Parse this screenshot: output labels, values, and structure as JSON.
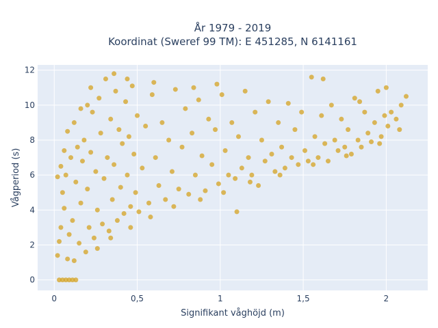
{
  "chart_data": {
    "type": "scatter",
    "title_line1": "År 1979 - 2019",
    "title_line2": "Koordinat (Sweref 99 TM): E 451285, N 6141161",
    "xlabel": "Signifikant våghöjd (m)",
    "ylabel": "Vågperiod (s)",
    "xlim": [
      -0.1,
      2.25
    ],
    "ylim": [
      -0.6,
      12.3
    ],
    "x_ticks": [
      0,
      0.5,
      1,
      1.5,
      2
    ],
    "x_tick_labels": [
      "0",
      "0,5",
      "1",
      "1,5",
      "2"
    ],
    "y_ticks": [
      0,
      2,
      4,
      6,
      8,
      10,
      12
    ],
    "y_tick_labels": [
      "0",
      "2",
      "4",
      "6",
      "8",
      "10",
      "12"
    ],
    "grid": true,
    "marker_color": "#d4a321",
    "plot_background": "#e5ecf6",
    "series": [
      {
        "points": [
          [
            0.02,
            1.4
          ],
          [
            0.03,
            2.2
          ],
          [
            0.04,
            3.0
          ],
          [
            0.05,
            5.0
          ],
          [
            0.06,
            4.1
          ],
          [
            0.07,
            6.0
          ],
          [
            0.08,
            1.2
          ],
          [
            0.09,
            2.6
          ],
          [
            0.1,
            7.0
          ],
          [
            0.11,
            3.4
          ],
          [
            0.12,
            1.1
          ],
          [
            0.13,
            5.6
          ],
          [
            0.14,
            7.6
          ],
          [
            0.15,
            2.1
          ],
          [
            0.16,
            4.4
          ],
          [
            0.17,
            6.8
          ],
          [
            0.18,
            8.0
          ],
          [
            0.19,
            1.6
          ],
          [
            0.2,
            5.2
          ],
          [
            0.21,
            3.0
          ],
          [
            0.22,
            7.3
          ],
          [
            0.23,
            9.6
          ],
          [
            0.24,
            2.4
          ],
          [
            0.25,
            6.2
          ],
          [
            0.26,
            4.0
          ],
          [
            0.27,
            10.4
          ],
          [
            0.28,
            8.4
          ],
          [
            0.29,
            3.2
          ],
          [
            0.3,
            5.8
          ],
          [
            0.31,
            11.5
          ],
          [
            0.32,
            7.0
          ],
          [
            0.33,
            2.8
          ],
          [
            0.34,
            9.2
          ],
          [
            0.35,
            4.6
          ],
          [
            0.36,
            6.6
          ],
          [
            0.37,
            10.8
          ],
          [
            0.38,
            3.4
          ],
          [
            0.39,
            8.6
          ],
          [
            0.4,
            5.3
          ],
          [
            0.41,
            7.8
          ],
          [
            0.42,
            3.8
          ],
          [
            0.43,
            10.2
          ],
          [
            0.44,
            6.0
          ],
          [
            0.45,
            8.2
          ],
          [
            0.46,
            4.2
          ],
          [
            0.47,
            11.1
          ],
          [
            0.48,
            7.2
          ],
          [
            0.49,
            5.0
          ],
          [
            0.5,
            9.4
          ],
          [
            0.51,
            3.9
          ],
          [
            0.53,
            6.4
          ],
          [
            0.55,
            8.8
          ],
          [
            0.57,
            4.4
          ],
          [
            0.59,
            10.6
          ],
          [
            0.61,
            7.0
          ],
          [
            0.63,
            5.4
          ],
          [
            0.65,
            9.0
          ],
          [
            0.67,
            4.6
          ],
          [
            0.69,
            8.0
          ],
          [
            0.71,
            6.2
          ],
          [
            0.73,
            10.9
          ],
          [
            0.75,
            5.2
          ],
          [
            0.77,
            7.6
          ],
          [
            0.79,
            9.8
          ],
          [
            0.81,
            4.9
          ],
          [
            0.83,
            8.4
          ],
          [
            0.85,
            6.0
          ],
          [
            0.87,
            10.3
          ],
          [
            0.89,
            7.1
          ],
          [
            0.91,
            5.1
          ],
          [
            0.93,
            9.2
          ],
          [
            0.95,
            6.6
          ],
          [
            0.97,
            8.6
          ],
          [
            0.99,
            5.5
          ],
          [
            1.01,
            10.6
          ],
          [
            1.03,
            7.4
          ],
          [
            1.05,
            6.0
          ],
          [
            1.07,
            9.0
          ],
          [
            1.09,
            5.8
          ],
          [
            1.11,
            8.2
          ],
          [
            1.13,
            6.4
          ],
          [
            1.15,
            10.8
          ],
          [
            1.17,
            7.0
          ],
          [
            1.19,
            6.0
          ],
          [
            1.21,
            9.6
          ],
          [
            1.23,
            5.4
          ],
          [
            1.25,
            8.0
          ],
          [
            1.27,
            6.8
          ],
          [
            1.29,
            10.2
          ],
          [
            1.31,
            7.2
          ],
          [
            1.33,
            6.2
          ],
          [
            1.35,
            9.0
          ],
          [
            1.37,
            7.6
          ],
          [
            1.39,
            6.4
          ],
          [
            1.41,
            10.1
          ],
          [
            1.43,
            7.0
          ],
          [
            1.45,
            8.6
          ],
          [
            1.47,
            6.6
          ],
          [
            1.49,
            9.6
          ],
          [
            1.51,
            7.4
          ],
          [
            1.53,
            6.8
          ],
          [
            1.55,
            11.6
          ],
          [
            1.57,
            8.2
          ],
          [
            1.59,
            7.0
          ],
          [
            1.61,
            9.4
          ],
          [
            1.63,
            7.8
          ],
          [
            1.65,
            6.8
          ],
          [
            1.67,
            10.0
          ],
          [
            1.69,
            8.0
          ],
          [
            1.71,
            7.4
          ],
          [
            1.73,
            9.2
          ],
          [
            1.75,
            7.6
          ],
          [
            1.77,
            8.6
          ],
          [
            1.79,
            7.2
          ],
          [
            1.81,
            10.4
          ],
          [
            1.83,
            8.0
          ],
          [
            1.85,
            7.6
          ],
          [
            1.87,
            9.6
          ],
          [
            1.89,
            8.4
          ],
          [
            1.91,
            7.9
          ],
          [
            1.93,
            9.0
          ],
          [
            1.95,
            10.8
          ],
          [
            1.97,
            8.2
          ],
          [
            1.99,
            9.4
          ],
          [
            2.01,
            8.8
          ],
          [
            2.03,
            9.6
          ],
          [
            2.06,
            9.2
          ],
          [
            2.09,
            10.0
          ],
          [
            2.12,
            10.5
          ],
          [
            0.03,
            0.0
          ],
          [
            0.05,
            0.0
          ],
          [
            0.07,
            0.0
          ],
          [
            0.09,
            0.0
          ],
          [
            0.11,
            0.0
          ],
          [
            0.13,
            0.0
          ],
          [
            0.02,
            5.9
          ],
          [
            0.04,
            6.5
          ],
          [
            0.06,
            7.4
          ],
          [
            0.08,
            8.5
          ],
          [
            0.12,
            9.0
          ],
          [
            0.16,
            9.8
          ],
          [
            0.2,
            10.0
          ],
          [
            0.22,
            11.0
          ],
          [
            0.36,
            11.8
          ],
          [
            0.44,
            11.5
          ],
          [
            0.26,
            1.8
          ],
          [
            0.34,
            2.4
          ],
          [
            0.46,
            3.0
          ],
          [
            0.58,
            3.6
          ],
          [
            0.72,
            4.2
          ],
          [
            0.88,
            4.6
          ],
          [
            1.02,
            5.0
          ],
          [
            1.18,
            5.6
          ],
          [
            1.36,
            6.0
          ],
          [
            1.56,
            6.6
          ],
          [
            1.76,
            7.1
          ],
          [
            1.96,
            7.8
          ],
          [
            2.08,
            8.6
          ],
          [
            1.1,
            3.9
          ],
          [
            0.98,
            11.2
          ],
          [
            1.62,
            11.5
          ],
          [
            1.84,
            10.2
          ],
          [
            2.0,
            11.0
          ],
          [
            0.6,
            11.3
          ],
          [
            0.84,
            11.0
          ]
        ]
      }
    ]
  }
}
